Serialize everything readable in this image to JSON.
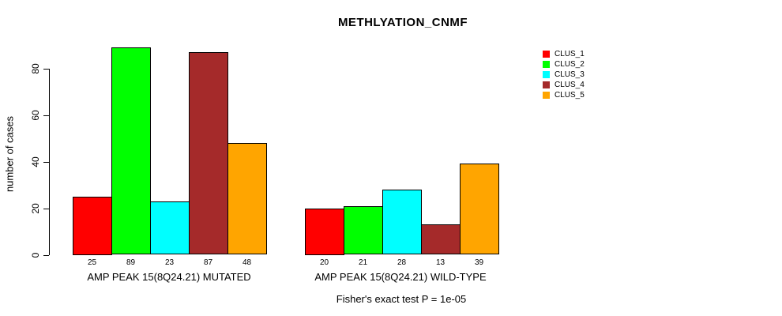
{
  "title": "METHLYATION_CNMF",
  "chart_data": {
    "type": "bar",
    "title": "METHLYATION_CNMF",
    "ylabel": "number of cases",
    "xlabel": "",
    "ylim": [
      0,
      90
    ],
    "yticks": [
      0,
      20,
      40,
      60,
      80
    ],
    "grid": false,
    "legend_position": "right",
    "categories": [
      "AMP PEAK 15(8Q24.21) MUTATED",
      "AMP PEAK 15(8Q24.21) WILD-TYPE"
    ],
    "series": [
      {
        "name": "CLUS_1",
        "color": "#FF0000",
        "values": [
          25,
          20
        ]
      },
      {
        "name": "CLUS_2",
        "color": "#00FF00",
        "values": [
          89,
          21
        ]
      },
      {
        "name": "CLUS_3",
        "color": "#00FFFF",
        "values": [
          23,
          28
        ]
      },
      {
        "name": "CLUS_4",
        "color": "#A52A2A",
        "values": [
          87,
          13
        ]
      },
      {
        "name": "CLUS_5",
        "color": "#FFA500",
        "values": [
          48,
          39
        ]
      }
    ],
    "bar_value_labels": [
      [
        25,
        89,
        23,
        87,
        48
      ],
      [
        20,
        21,
        28,
        13,
        39
      ]
    ],
    "annotation": "Fisher's exact test P = 1e-05"
  }
}
